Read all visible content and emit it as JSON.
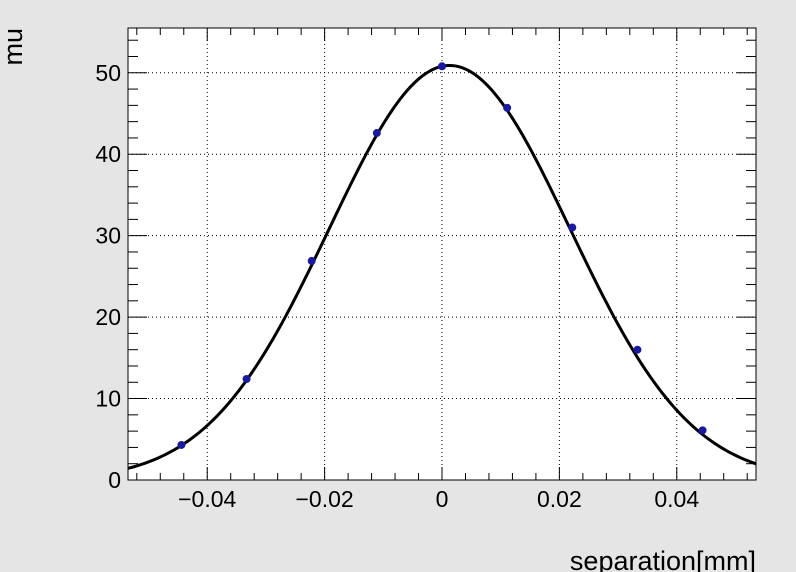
{
  "chart_data": {
    "type": "scatter",
    "title": "",
    "xlabel": "separation[mm]",
    "ylabel": "mu",
    "xlim": [
      -0.0535,
      0.0535
    ],
    "ylim": [
      0,
      55.5
    ],
    "grid": true,
    "x_ticks": [
      {
        "value": -0.04,
        "label": "−0.04"
      },
      {
        "value": -0.02,
        "label": "−0.02"
      },
      {
        "value": 0,
        "label": "0"
      },
      {
        "value": 0.02,
        "label": "0.02"
      },
      {
        "value": 0.04,
        "label": "0.04"
      }
    ],
    "y_ticks": [
      {
        "value": 0,
        "label": "0"
      },
      {
        "value": 10,
        "label": "10"
      },
      {
        "value": 20,
        "label": "20"
      },
      {
        "value": 30,
        "label": "30"
      },
      {
        "value": 40,
        "label": "40"
      },
      {
        "value": 50,
        "label": "50"
      }
    ],
    "series": [
      {
        "kind": "points",
        "color": "#1a1aa0",
        "x": [
          -0.0444,
          -0.0333,
          -0.0222,
          -0.0111,
          0.0,
          0.0111,
          0.0222,
          0.0333,
          0.0444
        ],
        "y": [
          4.3,
          12.4,
          26.9,
          42.6,
          50.8,
          45.7,
          31.0,
          16.0,
          6.1
        ]
      },
      {
        "kind": "fit-curve",
        "color": "#000000",
        "model": "gaussian",
        "amplitude": 50.9,
        "mean": 0.0013,
        "sigma": 0.0205
      }
    ]
  }
}
